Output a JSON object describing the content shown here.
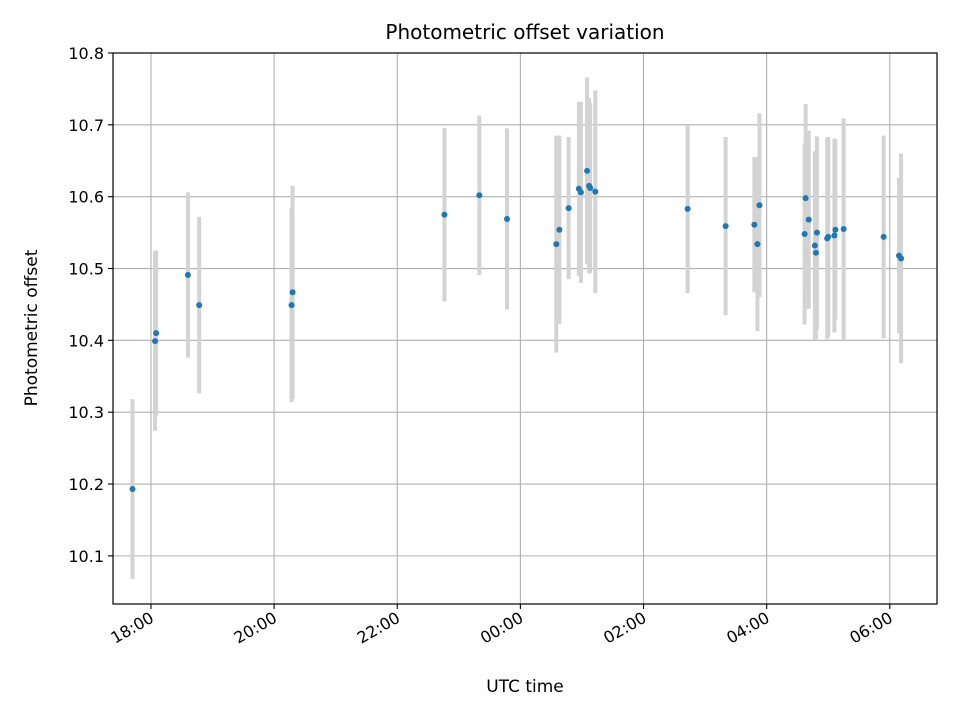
{
  "chart_data": {
    "type": "scatter",
    "title": "Photometric offset variation",
    "xlabel": "UTC time",
    "ylabel": "Photometric offset",
    "x_ticks": [
      "18:00",
      "20:00",
      "22:00",
      "00:00",
      "02:00",
      "04:00",
      "06:00"
    ],
    "y_ticks": [
      "10.1",
      "10.2",
      "10.3",
      "10.4",
      "10.5",
      "10.6",
      "10.7",
      "10.8"
    ],
    "xlim": [
      "17:23",
      "06:46"
    ],
    "ylim": [
      10.033,
      10.8
    ],
    "grid": true,
    "marker_color": "#1f77b4",
    "errorbar_color": "#d3d3d3",
    "series": [
      {
        "points": [
          {
            "x": "17:42",
            "y": 10.193,
            "y_err": 0.125
          },
          {
            "x": "18:04",
            "y": 10.399,
            "y_err": 0.125
          },
          {
            "x": "18:05",
            "y": 10.41,
            "y_err": 0.115
          },
          {
            "x": "18:36",
            "y": 10.491,
            "y_err": 0.115
          },
          {
            "x": "18:47",
            "y": 10.449,
            "y_err": 0.123
          },
          {
            "x": "20:17",
            "y": 10.449,
            "y_err": 0.135
          },
          {
            "x": "20:18",
            "y": 10.467,
            "y_err": 0.148
          },
          {
            "x": "22:46",
            "y": 10.575,
            "y_err": 0.121
          },
          {
            "x": "23:20",
            "y": 10.602,
            "y_err": 0.111
          },
          {
            "x": "23:47",
            "y": 10.569,
            "y_err": 0.126
          },
          {
            "x": "00:35",
            "y": 10.534,
            "y_err": 0.151
          },
          {
            "x": "00:38",
            "y": 10.554,
            "y_err": 0.131
          },
          {
            "x": "00:47",
            "y": 10.584,
            "y_err": 0.099
          },
          {
            "x": "00:57",
            "y": 10.611,
            "y_err": 0.121
          },
          {
            "x": "00:59",
            "y": 10.606,
            "y_err": 0.126
          },
          {
            "x": "01:05",
            "y": 10.636,
            "y_err": 0.13
          },
          {
            "x": "01:07",
            "y": 10.615,
            "y_err": 0.122
          },
          {
            "x": "01:08",
            "y": 10.612,
            "y_err": 0.118
          },
          {
            "x": "01:13",
            "y": 10.607,
            "y_err": 0.141
          },
          {
            "x": "02:43",
            "y": 10.583,
            "y_err": 0.117
          },
          {
            "x": "03:20",
            "y": 10.559,
            "y_err": 0.124
          },
          {
            "x": "03:48",
            "y": 10.561,
            "y_err": 0.094
          },
          {
            "x": "03:51",
            "y": 10.534,
            "y_err": 0.121
          },
          {
            "x": "03:53",
            "y": 10.588,
            "y_err": 0.128
          },
          {
            "x": "04:37",
            "y": 10.548,
            "y_err": 0.126
          },
          {
            "x": "04:38",
            "y": 10.598,
            "y_err": 0.131
          },
          {
            "x": "04:41",
            "y": 10.568,
            "y_err": 0.124
          },
          {
            "x": "04:47",
            "y": 10.532,
            "y_err": 0.131
          },
          {
            "x": "04:48",
            "y": 10.522,
            "y_err": 0.12
          },
          {
            "x": "04:49",
            "y": 10.55,
            "y_err": 0.134
          },
          {
            "x": "04:59",
            "y": 10.542,
            "y_err": 0.14
          },
          {
            "x": "05:00",
            "y": 10.544,
            "y_err": 0.139
          },
          {
            "x": "05:06",
            "y": 10.546,
            "y_err": 0.135
          },
          {
            "x": "05:07",
            "y": 10.554,
            "y_err": 0.125
          },
          {
            "x": "05:15",
            "y": 10.555,
            "y_err": 0.154
          },
          {
            "x": "05:54",
            "y": 10.544,
            "y_err": 0.141
          },
          {
            "x": "06:09",
            "y": 10.518,
            "y_err": 0.108
          },
          {
            "x": "06:11",
            "y": 10.514,
            "y_err": 0.146
          }
        ]
      }
    ]
  }
}
